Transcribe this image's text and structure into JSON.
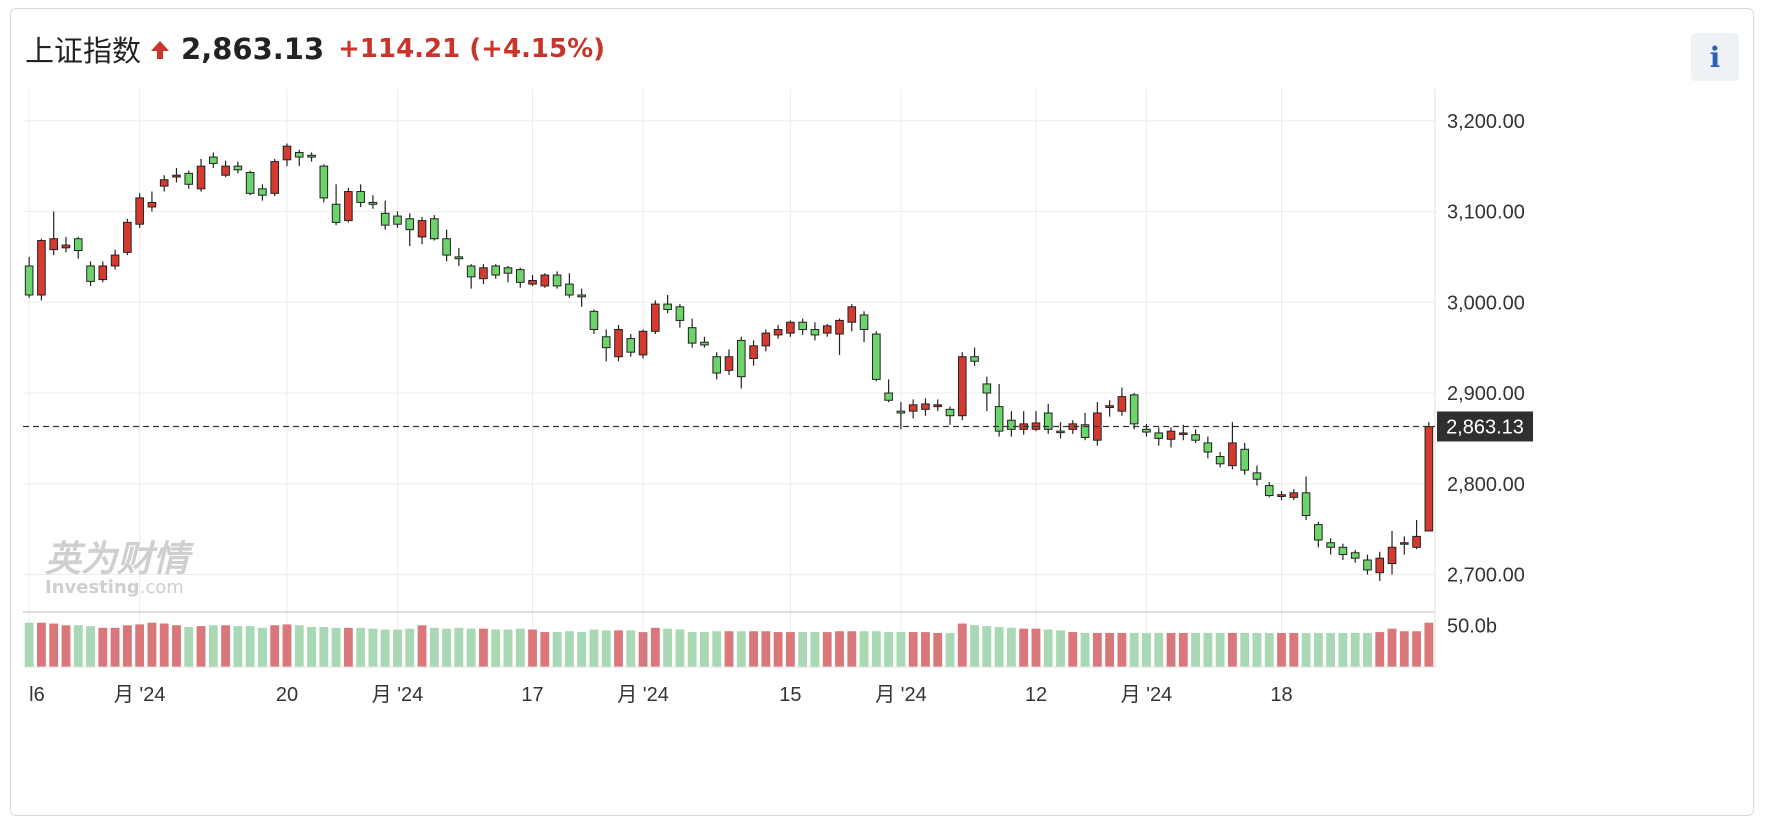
{
  "header": {
    "index_name": "上证指数",
    "last_price": "2,863.13",
    "change": "+114.21 (+4.15%)",
    "info_label": "i"
  },
  "watermark": {
    "cn": "英为财情",
    "en": "Investing",
    "en_suffix": ".com"
  },
  "colors": {
    "up": "#d63a2f",
    "down": "#6cd46a",
    "up_volume": "#d9787a",
    "down_volume": "#a8d8b4",
    "price_tag": "#2f2f2f"
  },
  "chart_data": {
    "type": "candlestick",
    "ylim": [
      2662,
      3235
    ],
    "price_ticks": [
      "3,200.00",
      "3,100.00",
      "3,000.00",
      "2,900.00",
      "2,800.00",
      "2,700.00"
    ],
    "price_tick_values": [
      3200,
      3100,
      3000,
      2900,
      2800,
      2700
    ],
    "current_price": 2863.13,
    "current_price_label": "2,863.13",
    "volume_tick_label": "50.0b",
    "volume_tick_value": 50,
    "x_labels": [
      "l6",
      "月 '24",
      "20",
      "月 '24",
      "17",
      "月 '24",
      "15",
      "月 '24",
      "12",
      "月 '24",
      "18"
    ],
    "x_label_index": [
      0,
      9,
      21,
      30,
      41,
      50,
      62,
      71,
      82,
      91,
      102
    ],
    "candles": [
      [
        3040,
        3008,
        3050,
        3005
      ],
      [
        3008,
        3068,
        3070,
        3002
      ],
      [
        3058,
        3070,
        3100,
        3052
      ],
      [
        3060,
        3063,
        3072,
        3055
      ],
      [
        3070,
        3057,
        3072,
        3048
      ],
      [
        3040,
        3023,
        3045,
        3018
      ],
      [
        3025,
        3040,
        3045,
        3022
      ],
      [
        3040,
        3052,
        3058,
        3036
      ],
      [
        3055,
        3088,
        3092,
        3052
      ],
      [
        3086,
        3115,
        3120,
        3082
      ],
      [
        3105,
        3110,
        3122,
        3100
      ],
      [
        3128,
        3135,
        3140,
        3122
      ],
      [
        3138,
        3140,
        3148,
        3132
      ],
      [
        3142,
        3130,
        3145,
        3125
      ],
      [
        3125,
        3150,
        3158,
        3122
      ],
      [
        3160,
        3153,
        3165,
        3148
      ],
      [
        3140,
        3150,
        3156,
        3138
      ],
      [
        3150,
        3146,
        3155,
        3142
      ],
      [
        3143,
        3120,
        3145,
        3118
      ],
      [
        3125,
        3118,
        3130,
        3112
      ],
      [
        3120,
        3155,
        3158,
        3117
      ],
      [
        3157,
        3172,
        3175,
        3150
      ],
      [
        3165,
        3160,
        3168,
        3150
      ],
      [
        3162,
        3160,
        3165,
        3155
      ],
      [
        3150,
        3115,
        3152,
        3110
      ],
      [
        3108,
        3088,
        3130,
        3085
      ],
      [
        3090,
        3122,
        3126,
        3088
      ],
      [
        3122,
        3110,
        3130,
        3105
      ],
      [
        3110,
        3108,
        3118,
        3103
      ],
      [
        3098,
        3085,
        3112,
        3080
      ],
      [
        3095,
        3086,
        3100,
        3082
      ],
      [
        3092,
        3080,
        3098,
        3062
      ],
      [
        3072,
        3090,
        3094,
        3064
      ],
      [
        3092,
        3070,
        3096,
        3068
      ],
      [
        3070,
        3052,
        3080,
        3045
      ],
      [
        3050,
        3048,
        3060,
        3040
      ],
      [
        3040,
        3028,
        3042,
        3015
      ],
      [
        3026,
        3038,
        3042,
        3020
      ],
      [
        3040,
        3030,
        3042,
        3026
      ],
      [
        3038,
        3032,
        3040,
        3022
      ],
      [
        3036,
        3022,
        3038,
        3016
      ],
      [
        3020,
        3024,
        3030,
        3018
      ],
      [
        3018,
        3030,
        3032,
        3016
      ],
      [
        3030,
        3018,
        3034,
        3015
      ],
      [
        3020,
        3008,
        3032,
        3005
      ],
      [
        3008,
        3006,
        3015,
        2995
      ],
      [
        2990,
        2970,
        2992,
        2965
      ],
      [
        2962,
        2950,
        2970,
        2935
      ],
      [
        2940,
        2970,
        2975,
        2935
      ],
      [
        2960,
        2945,
        2965,
        2940
      ],
      [
        2942,
        2968,
        2970,
        2938
      ],
      [
        2968,
        2998,
        3002,
        2965
      ],
      [
        2998,
        2992,
        3008,
        2988
      ],
      [
        2995,
        2980,
        2998,
        2972
      ],
      [
        2972,
        2955,
        2982,
        2950
      ],
      [
        2956,
        2953,
        2962,
        2950
      ],
      [
        2940,
        2922,
        2945,
        2915
      ],
      [
        2925,
        2940,
        2948,
        2920
      ],
      [
        2958,
        2918,
        2962,
        2905
      ],
      [
        2938,
        2952,
        2958,
        2930
      ],
      [
        2952,
        2966,
        2970,
        2946
      ],
      [
        2964,
        2970,
        2975,
        2960
      ],
      [
        2966,
        2978,
        2980,
        2962
      ],
      [
        2978,
        2970,
        2982,
        2964
      ],
      [
        2970,
        2964,
        2978,
        2958
      ],
      [
        2966,
        2974,
        2976,
        2962
      ],
      [
        2965,
        2980,
        2982,
        2942
      ],
      [
        2978,
        2995,
        2998,
        2968
      ],
      [
        2986,
        2970,
        2990,
        2956
      ],
      [
        2965,
        2915,
        2968,
        2913
      ],
      [
        2900,
        2892,
        2915,
        2890
      ],
      [
        2880,
        2878,
        2890,
        2860
      ],
      [
        2880,
        2887,
        2893,
        2872
      ],
      [
        2882,
        2888,
        2894,
        2875
      ],
      [
        2885,
        2887,
        2893,
        2880
      ],
      [
        2882,
        2875,
        2885,
        2865
      ],
      [
        2875,
        2940,
        2945,
        2870
      ],
      [
        2940,
        2935,
        2950,
        2930
      ],
      [
        2910,
        2900,
        2918,
        2880
      ],
      [
        2885,
        2858,
        2910,
        2852
      ],
      [
        2870,
        2860,
        2880,
        2852
      ],
      [
        2860,
        2866,
        2880,
        2854
      ],
      [
        2860,
        2867,
        2880,
        2858
      ],
      [
        2878,
        2860,
        2888,
        2855
      ],
      [
        2858,
        2857,
        2868,
        2850
      ],
      [
        2860,
        2866,
        2870,
        2855
      ],
      [
        2865,
        2851,
        2878,
        2848
      ],
      [
        2848,
        2878,
        2890,
        2842
      ],
      [
        2884,
        2886,
        2892,
        2874
      ],
      [
        2880,
        2896,
        2906,
        2875
      ],
      [
        2898,
        2866,
        2900,
        2860
      ],
      [
        2860,
        2857,
        2866,
        2852
      ],
      [
        2856,
        2850,
        2862,
        2842
      ],
      [
        2849,
        2858,
        2862,
        2840
      ],
      [
        2855,
        2856,
        2865,
        2848
      ],
      [
        2854,
        2848,
        2860,
        2845
      ],
      [
        2845,
        2835,
        2852,
        2828
      ],
      [
        2830,
        2822,
        2835,
        2818
      ],
      [
        2820,
        2845,
        2868,
        2816
      ],
      [
        2838,
        2815,
        2845,
        2810
      ],
      [
        2812,
        2805,
        2820,
        2798
      ],
      [
        2798,
        2787,
        2802,
        2785
      ],
      [
        2786,
        2788,
        2792,
        2782
      ],
      [
        2785,
        2790,
        2794,
        2782
      ],
      [
        2790,
        2765,
        2808,
        2760
      ],
      [
        2755,
        2738,
        2758,
        2730
      ],
      [
        2735,
        2730,
        2740,
        2722
      ],
      [
        2730,
        2722,
        2734,
        2716
      ],
      [
        2724,
        2718,
        2727,
        2713
      ],
      [
        2716,
        2705,
        2722,
        2700
      ],
      [
        2702,
        2718,
        2725,
        2693
      ],
      [
        2712,
        2730,
        2748,
        2700
      ],
      [
        2735,
        2735,
        2742,
        2722
      ],
      [
        2730,
        2742,
        2760,
        2728
      ],
      [
        2748,
        2863,
        2868,
        2763
      ]
    ],
    "volumes": [
      52,
      52,
      51,
      49,
      49,
      48,
      46,
      46,
      49,
      50,
      52,
      51,
      49,
      47,
      48,
      49,
      49,
      48,
      48,
      46,
      49,
      50,
      49,
      47,
      47,
      46,
      46,
      46,
      45,
      44,
      44,
      45,
      49,
      46,
      45,
      46,
      45,
      45,
      44,
      44,
      45,
      44,
      41,
      41,
      42,
      41,
      44,
      43,
      43,
      43,
      41,
      46,
      45,
      44,
      41,
      41,
      42,
      42,
      42,
      42,
      42,
      41,
      41,
      41,
      41,
      41,
      42,
      42,
      42,
      42,
      41,
      41,
      41,
      41,
      40,
      40,
      51,
      49,
      48,
      47,
      46,
      45,
      45,
      44,
      43,
      41,
      40,
      40,
      40,
      40,
      40,
      40,
      40,
      40,
      40,
      40,
      40,
      40,
      40,
      40,
      40,
      40,
      40,
      40,
      40,
      40,
      40,
      40,
      40,
      40,
      41,
      45,
      42,
      42,
      52
    ]
  }
}
